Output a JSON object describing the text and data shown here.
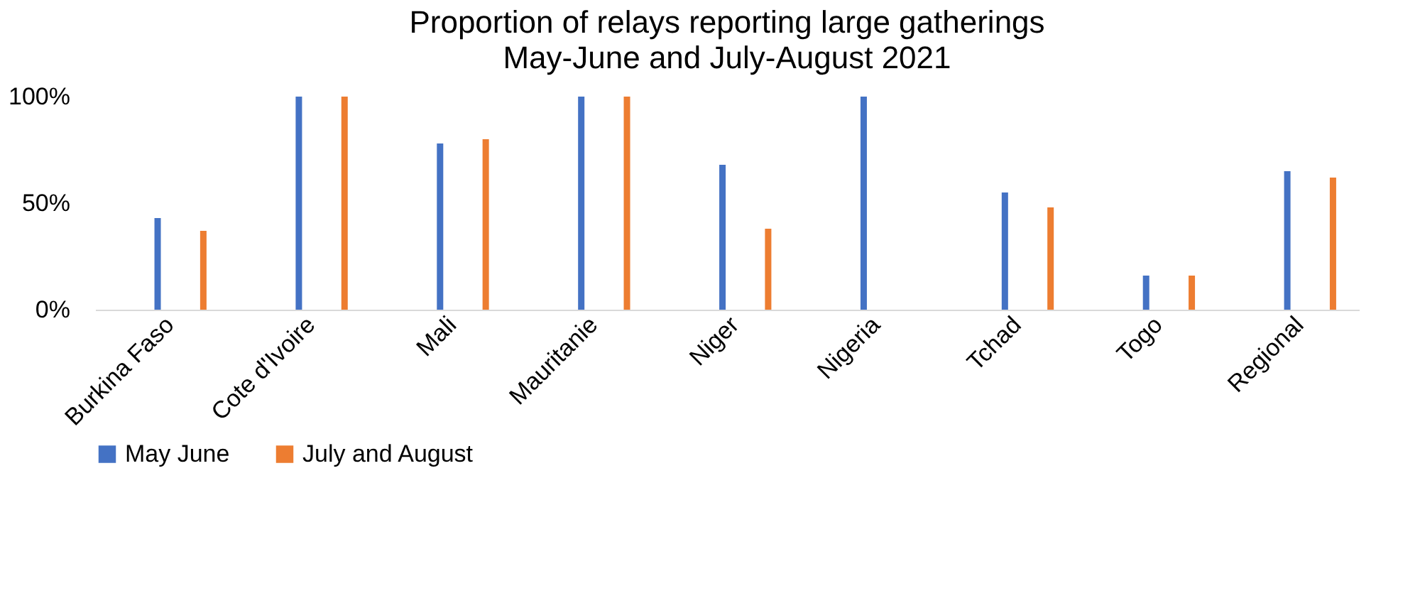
{
  "chart_data": {
    "type": "bar",
    "title": "Proportion of relays reporting large gatherings",
    "subtitle": "May-June and July-August 2021",
    "categories": [
      "Burkina Faso",
      "Cote d'Ivoire",
      "Mali",
      "Mauritanie",
      "Niger",
      "Nigeria",
      "Tchad",
      "Togo",
      "Regional"
    ],
    "series": [
      {
        "name": "May June",
        "color": "#4472c4",
        "values": [
          43,
          100,
          78,
          100,
          68,
          100,
          55,
          16,
          65
        ]
      },
      {
        "name": "July and August",
        "color": "#ed7d31",
        "values": [
          37,
          100,
          80,
          100,
          38,
          null,
          48,
          16,
          62
        ]
      }
    ],
    "ylim": [
      0,
      100
    ],
    "yticks": [
      {
        "value": 0,
        "label": "0%"
      },
      {
        "value": 50,
        "label": "50%"
      },
      {
        "value": 100,
        "label": "100%"
      }
    ],
    "grid": false,
    "legend": "bottom"
  }
}
